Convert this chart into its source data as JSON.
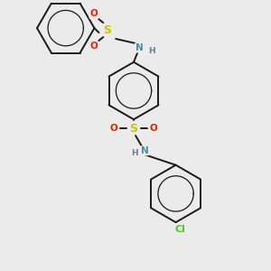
{
  "bg_color": "#ebebeb",
  "bond_color": "#1a1a1a",
  "bond_width": 1.4,
  "atom_colors": {
    "N": "#4a8fa8",
    "H": "#6a7f8a",
    "S": "#c8c800",
    "O": "#e82000",
    "Cl": "#44cc22",
    "C": "#1a1a1a"
  },
  "figsize": [
    3.0,
    3.0
  ],
  "dpi": 100
}
